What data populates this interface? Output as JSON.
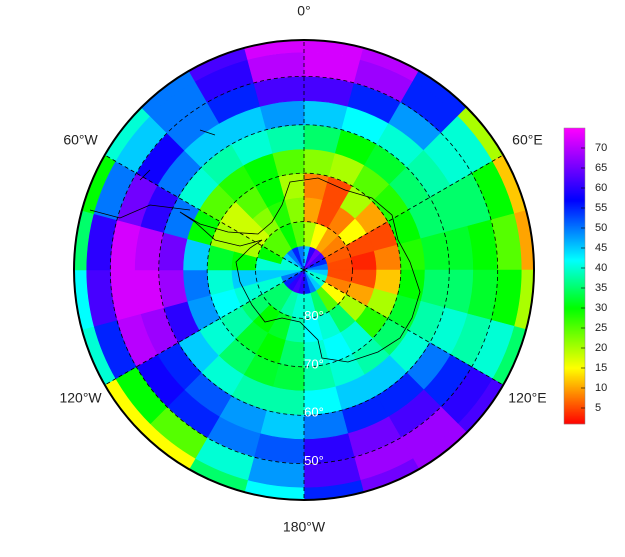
{
  "map": {
    "type": "polar-heatmap",
    "lon_labels": [
      {
        "value": 0,
        "label": "0°"
      },
      {
        "value": 60,
        "label": "60°E"
      },
      {
        "value": 120,
        "label": "120°E"
      },
      {
        "value": 180,
        "label": "180°W"
      },
      {
        "value": 240,
        "label": "120°W"
      },
      {
        "value": 300,
        "label": "60°W"
      }
    ],
    "lat_labels": [
      {
        "value": -80,
        "label": "80°"
      },
      {
        "value": -70,
        "label": "70°"
      },
      {
        "value": -60,
        "label": "60°"
      },
      {
        "value": -50,
        "label": "50°"
      }
    ],
    "lat_edges": [
      -90,
      -85,
      -80,
      -75,
      -70,
      -65,
      -60,
      -55,
      -50,
      -45,
      -42.5
    ],
    "field": [
      [
        45,
        60,
        65,
        62,
        55,
        50,
        45,
        40,
        40,
        45,
        50,
        55,
        60,
        62,
        60,
        55,
        50,
        45,
        40,
        40,
        45,
        50,
        55,
        50
      ],
      [
        20,
        15,
        10,
        8,
        6,
        5,
        5,
        8,
        15,
        25,
        35,
        40,
        40,
        38,
        35,
        35,
        40,
        45,
        40,
        30,
        25,
        25,
        30,
        25
      ],
      [
        10,
        5,
        8,
        15,
        5,
        3,
        5,
        10,
        20,
        35,
        40,
        42,
        38,
        32,
        30,
        35,
        40,
        45,
        30,
        20,
        18,
        22,
        28,
        22
      ],
      [
        8,
        5,
        20,
        10,
        5,
        8,
        12,
        20,
        28,
        40,
        42,
        40,
        35,
        30,
        32,
        38,
        42,
        40,
        32,
        20,
        18,
        25,
        30,
        20
      ],
      [
        22,
        20,
        25,
        28,
        30,
        28,
        30,
        32,
        35,
        38,
        40,
        38,
        33,
        32,
        35,
        40,
        48,
        50,
        45,
        30,
        25,
        28,
        30,
        25
      ],
      [
        35,
        30,
        32,
        35,
        35,
        32,
        35,
        38,
        40,
        45,
        45,
        42,
        38,
        38,
        40,
        45,
        60,
        68,
        65,
        50,
        40,
        38,
        40,
        38
      ],
      [
        45,
        42,
        40,
        38,
        35,
        32,
        35,
        40,
        50,
        55,
        55,
        50,
        45,
        48,
        52,
        55,
        68,
        72,
        70,
        60,
        50,
        45,
        45,
        48
      ],
      [
        62,
        55,
        48,
        40,
        35,
        30,
        32,
        38,
        55,
        62,
        65,
        60,
        52,
        50,
        55,
        58,
        70,
        72,
        72,
        65,
        58,
        50,
        55,
        62
      ],
      [
        72,
        68,
        55,
        40,
        30,
        25,
        30,
        40,
        60,
        68,
        68,
        62,
        48,
        40,
        25,
        30,
        55,
        62,
        60,
        50,
        45,
        50,
        60,
        70
      ],
      [
        72,
        70,
        55,
        20,
        12,
        10,
        20,
        35,
        62,
        68,
        65,
        55,
        42,
        35,
        15,
        15,
        40,
        42,
        35,
        30,
        40,
        50,
        62,
        72
      ]
    ],
    "colorscale": [
      [
        1,
        "#ff0000"
      ],
      [
        15,
        "#ffff00"
      ],
      [
        30,
        "#00ff00"
      ],
      [
        42,
        "#00ffff"
      ],
      [
        57,
        "#0000ff"
      ],
      [
        75,
        "#ff00ff"
      ]
    ],
    "clim": [
      1,
      75
    ],
    "colorbar_ticks": [
      5,
      10,
      15,
      20,
      25,
      30,
      35,
      40,
      45,
      50,
      55,
      60,
      65,
      70
    ]
  }
}
